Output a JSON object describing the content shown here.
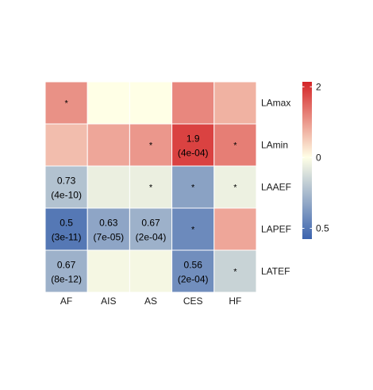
{
  "chart_data": {
    "type": "heatmap",
    "title": "",
    "xlabel": "",
    "ylabel": "",
    "x_categories": [
      "AF",
      "AIS",
      "AS",
      "CES",
      "HF"
    ],
    "y_categories": [
      "LAmax",
      "LAmin",
      "LAAEF",
      "LAPEF",
      "LATEF"
    ],
    "color_scale": {
      "type": "log-diverging",
      "min": 0.45,
      "mid": 1,
      "max": 2.1,
      "ticks": [
        "0.5",
        "0",
        "2"
      ],
      "low_color": "#3B63AE",
      "mid_color": "#FFFFE6",
      "high_color": "#D42427"
    },
    "values": [
      [
        1.45,
        1.0,
        1.0,
        1.5,
        1.3
      ],
      [
        1.25,
        1.35,
        1.42,
        1.9,
        1.55
      ],
      [
        0.73,
        0.92,
        0.92,
        0.62,
        0.93
      ],
      [
        0.5,
        0.63,
        0.67,
        0.55,
        1.35
      ],
      [
        0.67,
        0.96,
        0.96,
        0.56,
        0.8
      ]
    ],
    "annotations": [
      [
        "*",
        "",
        "",
        "",
        ""
      ],
      [
        "",
        "",
        "*",
        "1.9",
        "*"
      ],
      [
        "0.73",
        "",
        "*",
        "*",
        "*"
      ],
      [
        "0.5",
        "0.63",
        "0.67",
        "*",
        ""
      ],
      [
        "0.67",
        "",
        "",
        "0.56",
        "*"
      ]
    ],
    "pvalues": [
      [
        "",
        "",
        "",
        "",
        ""
      ],
      [
        "",
        "",
        "",
        "(4e-04)",
        ""
      ],
      [
        "(4e-10)",
        "",
        "",
        "",
        ""
      ],
      [
        "(3e-11)",
        "(7e-05)",
        "(2e-04)",
        "",
        ""
      ],
      [
        "(8e-12)",
        "",
        "",
        "(2e-04)",
        ""
      ]
    ]
  }
}
